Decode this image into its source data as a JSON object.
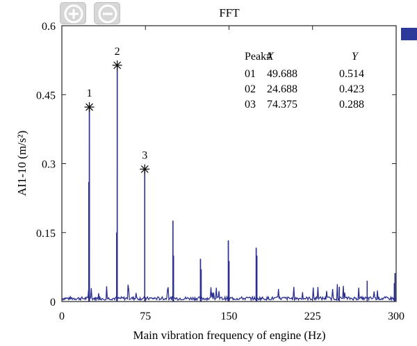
{
  "toolbar": {
    "zoom_in_label": "",
    "zoom_out_label": ""
  },
  "chart_data": {
    "type": "line",
    "title": "FFT",
    "xlabel": "Main vibration frequency of engine (Hz)",
    "ylabel": "AI1-10 (m/s²)",
    "xlim": [
      0,
      300
    ],
    "ylim": [
      0,
      0.6
    ],
    "x_ticks": [
      "0",
      "75",
      "150",
      "225",
      "300"
    ],
    "y_ticks": [
      "0",
      "0.15",
      "0.3",
      "0.45",
      "0.6"
    ],
    "grid": false,
    "line_color": "#2b2f8f",
    "series_swatch_color": "#2d3a9a",
    "peaks": [
      {
        "label": "1",
        "x": 24.688,
        "y": 0.423
      },
      {
        "label": "2",
        "x": 49.688,
        "y": 0.514
      },
      {
        "label": "3",
        "x": 74.375,
        "y": 0.288
      }
    ],
    "peak_table": {
      "headers": [
        "Peak#",
        "X",
        "Y"
      ],
      "rows": [
        [
          "01",
          "49.688",
          "0.514"
        ],
        [
          "02",
          "24.688",
          "0.423"
        ],
        [
          "03",
          "74.375",
          "0.288"
        ]
      ]
    },
    "spikes": [
      {
        "x": 24.688,
        "y": 0.423
      },
      {
        "x": 24.2,
        "y": 0.26
      },
      {
        "x": 49.688,
        "y": 0.514
      },
      {
        "x": 49.2,
        "y": 0.15
      },
      {
        "x": 74.375,
        "y": 0.288
      },
      {
        "x": 99.7,
        "y": 0.176
      },
      {
        "x": 100.2,
        "y": 0.1
      },
      {
        "x": 124.4,
        "y": 0.093
      },
      {
        "x": 125.0,
        "y": 0.07
      },
      {
        "x": 149.4,
        "y": 0.133
      },
      {
        "x": 150.0,
        "y": 0.088
      },
      {
        "x": 174.4,
        "y": 0.117
      },
      {
        "x": 175.0,
        "y": 0.1
      },
      {
        "x": 299.0,
        "y": 0.062
      },
      {
        "x": 298.4,
        "y": 0.04
      },
      {
        "x": 274.0,
        "y": 0.045
      },
      {
        "x": 249.0,
        "y": 0.032
      }
    ],
    "noise_floor": 0.008
  }
}
